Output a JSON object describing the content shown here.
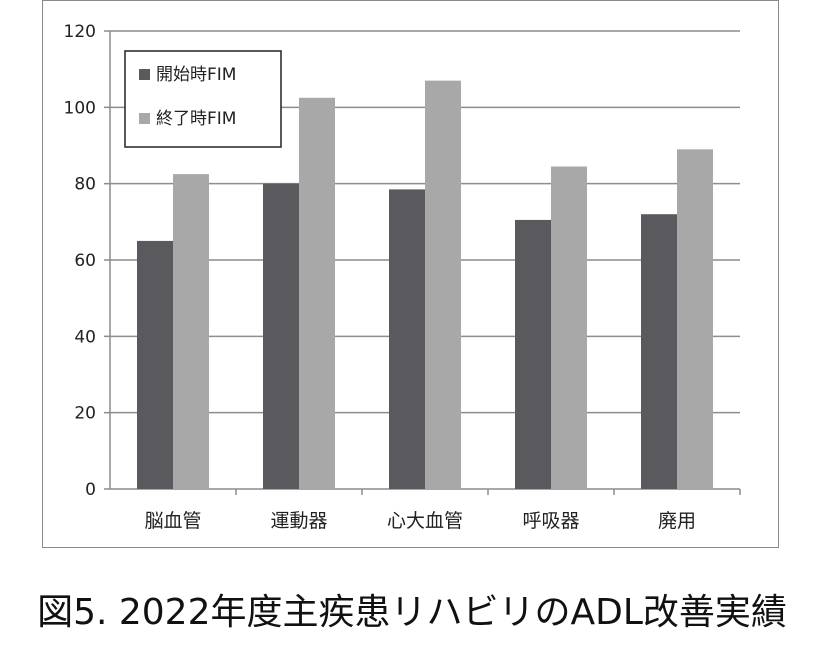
{
  "caption": "図5.  2022年度主疾患リハビリのADL改善実績",
  "chart_data": {
    "type": "bar",
    "title": "",
    "xlabel": "",
    "ylabel": "",
    "categories": [
      "脳血管",
      "運動器",
      "心大血管",
      "呼吸器",
      "廃用"
    ],
    "series": [
      {
        "name": "開始時FIM",
        "color": "#5a5a5e",
        "values": [
          65,
          80,
          78.5,
          70.5,
          72
        ]
      },
      {
        "name": "終了時FIM",
        "color": "#a8a8a8",
        "values": [
          82.5,
          102.5,
          107,
          84.5,
          89
        ]
      }
    ],
    "ylim": [
      0,
      120
    ],
    "yticks": [
      0,
      20,
      40,
      60,
      80,
      100,
      120
    ],
    "grid": true,
    "legend_position": "top-left"
  }
}
